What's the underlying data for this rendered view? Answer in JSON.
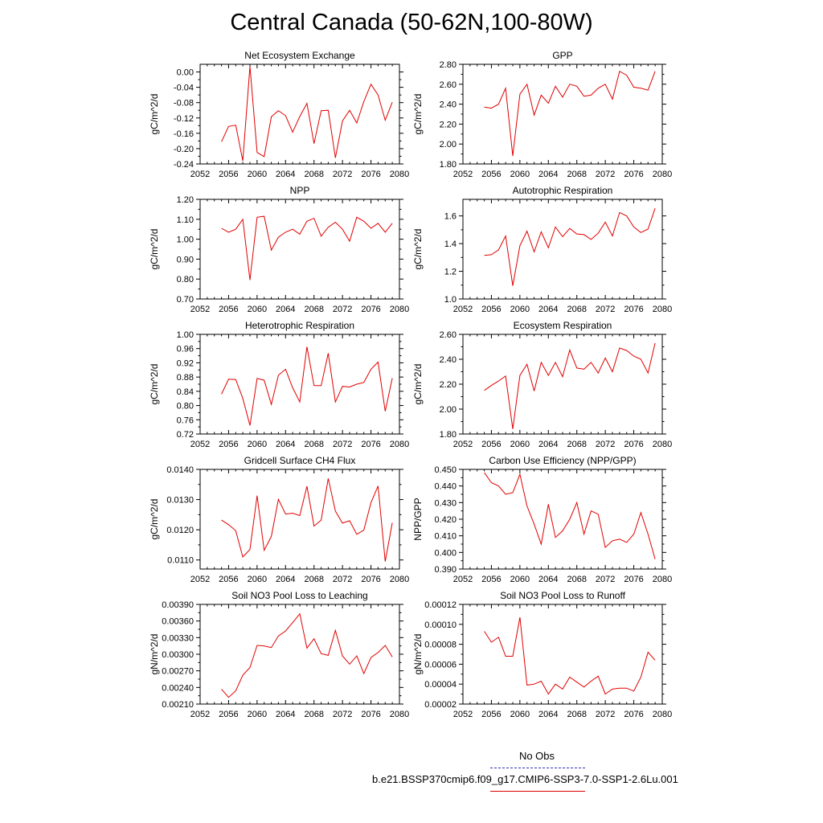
{
  "title": "Central Canada (50-62N,100-80W)",
  "legend": {
    "obs_label": "No Obs",
    "obs_color": "#3030b0",
    "run_label": "b.e21.BSSP370cmip6.f09_g17.CMIP6-SSP3-7.0-SSP1-2.6Lu.001",
    "run_color": "#e00000"
  },
  "chart_data": [
    {
      "type": "line",
      "title": "Net Ecosystem Exchange",
      "ylabel": "gC/m^2/d",
      "xlim": [
        2052,
        2080
      ],
      "ylim": [
        -0.24,
        0.02
      ],
      "xticks": [
        2052,
        2056,
        2060,
        2064,
        2068,
        2072,
        2076,
        2080
      ],
      "xtick_labels": [
        "2052",
        "2056",
        "2060",
        "2064",
        "2068",
        "2072",
        "2076",
        "2080"
      ],
      "yticks": [
        -0.24,
        -0.2,
        -0.16,
        -0.12,
        -0.08,
        -0.04,
        0.0
      ],
      "ytick_labels": [
        "-0.24",
        "-0.20",
        "-0.16",
        "-0.12",
        "-0.08",
        "-0.04",
        "0.00"
      ],
      "x": [
        2055,
        2056,
        2057,
        2058,
        2059,
        2060,
        2061,
        2062,
        2063,
        2064,
        2065,
        2066,
        2067,
        2068,
        2069,
        2070,
        2071,
        2072,
        2073,
        2074,
        2075,
        2076,
        2077,
        2078,
        2079
      ],
      "series": [
        {
          "color": "#e00000",
          "values": [
            -0.182,
            -0.142,
            -0.139,
            -0.232,
            0.015,
            -0.21,
            -0.221,
            -0.117,
            -0.101,
            -0.114,
            -0.157,
            -0.116,
            -0.082,
            -0.187,
            -0.101,
            -0.1,
            -0.224,
            -0.128,
            -0.1,
            -0.133,
            -0.077,
            -0.032,
            -0.06,
            -0.126,
            -0.079
          ]
        }
      ]
    },
    {
      "type": "line",
      "title": "GPP",
      "ylabel": "gC/m^2/d",
      "xlim": [
        2052,
        2080
      ],
      "ylim": [
        1.8,
        2.8
      ],
      "xticks": [
        2052,
        2056,
        2060,
        2064,
        2068,
        2072,
        2076,
        2080
      ],
      "xtick_labels": [
        "2052",
        "2056",
        "2060",
        "2064",
        "2068",
        "2072",
        "2076",
        "2080"
      ],
      "yticks": [
        1.8,
        2.0,
        2.2,
        2.4,
        2.6,
        2.8
      ],
      "ytick_labels": [
        "1.80",
        "2.00",
        "2.20",
        "2.40",
        "2.60",
        "2.80"
      ],
      "x": [
        2055,
        2056,
        2057,
        2058,
        2059,
        2060,
        2061,
        2062,
        2063,
        2064,
        2065,
        2066,
        2067,
        2068,
        2069,
        2070,
        2071,
        2072,
        2073,
        2074,
        2075,
        2076,
        2077,
        2078,
        2079
      ],
      "series": [
        {
          "color": "#e00000",
          "values": [
            2.37,
            2.36,
            2.4,
            2.56,
            1.88,
            2.5,
            2.6,
            2.29,
            2.49,
            2.41,
            2.58,
            2.47,
            2.6,
            2.58,
            2.48,
            2.49,
            2.56,
            2.6,
            2.45,
            2.73,
            2.69,
            2.57,
            2.56,
            2.54,
            2.73
          ]
        }
      ]
    },
    {
      "type": "line",
      "title": "NPP",
      "ylabel": "gC/m^2/d",
      "xlim": [
        2052,
        2080
      ],
      "ylim": [
        0.7,
        1.2
      ],
      "xticks": [
        2052,
        2056,
        2060,
        2064,
        2068,
        2072,
        2076,
        2080
      ],
      "xtick_labels": [
        "2052",
        "2056",
        "2060",
        "2064",
        "2068",
        "2072",
        "2076",
        "2080"
      ],
      "yticks": [
        0.7,
        0.8,
        0.9,
        1.0,
        1.1,
        1.2
      ],
      "ytick_labels": [
        "0.70",
        "0.80",
        "0.90",
        "1.00",
        "1.10",
        "1.20"
      ],
      "x": [
        2055,
        2056,
        2057,
        2058,
        2059,
        2060,
        2061,
        2062,
        2063,
        2064,
        2065,
        2066,
        2067,
        2068,
        2069,
        2070,
        2071,
        2072,
        2073,
        2074,
        2075,
        2076,
        2077,
        2078,
        2079
      ],
      "series": [
        {
          "color": "#e00000",
          "values": [
            1.055,
            1.035,
            1.05,
            1.1,
            0.795,
            1.11,
            1.115,
            0.945,
            1.01,
            1.035,
            1.05,
            1.025,
            1.09,
            1.105,
            1.015,
            1.06,
            1.085,
            1.05,
            0.99,
            1.11,
            1.09,
            1.055,
            1.08,
            1.035,
            1.08
          ]
        }
      ]
    },
    {
      "type": "line",
      "title": "Autotrophic Respiration",
      "ylabel": "gC/m^2/d",
      "xlim": [
        2052,
        2080
      ],
      "ylim": [
        1.0,
        1.72
      ],
      "xticks": [
        2052,
        2056,
        2060,
        2064,
        2068,
        2072,
        2076,
        2080
      ],
      "xtick_labels": [
        "2052",
        "2056",
        "2060",
        "2064",
        "2068",
        "2072",
        "2076",
        "2080"
      ],
      "yticks": [
        1.0,
        1.2,
        1.4,
        1.6
      ],
      "ytick_labels": [
        "1.0",
        "1.2",
        "1.4",
        "1.6"
      ],
      "x": [
        2055,
        2056,
        2057,
        2058,
        2059,
        2060,
        2061,
        2062,
        2063,
        2064,
        2065,
        2066,
        2067,
        2068,
        2069,
        2070,
        2071,
        2072,
        2073,
        2074,
        2075,
        2076,
        2077,
        2078,
        2079
      ],
      "series": [
        {
          "color": "#e00000",
          "values": [
            1.315,
            1.32,
            1.355,
            1.455,
            1.095,
            1.385,
            1.49,
            1.34,
            1.485,
            1.37,
            1.52,
            1.45,
            1.51,
            1.47,
            1.465,
            1.43,
            1.475,
            1.555,
            1.455,
            1.625,
            1.6,
            1.52,
            1.48,
            1.505,
            1.655
          ]
        }
      ]
    },
    {
      "type": "line",
      "title": "Heterotrophic Respiration",
      "ylabel": "gC/m^2/d",
      "xlim": [
        2052,
        2080
      ],
      "ylim": [
        0.72,
        1.0
      ],
      "xticks": [
        2052,
        2056,
        2060,
        2064,
        2068,
        2072,
        2076,
        2080
      ],
      "xtick_labels": [
        "2052",
        "2056",
        "2060",
        "2064",
        "2068",
        "2072",
        "2076",
        "2080"
      ],
      "yticks": [
        0.72,
        0.76,
        0.8,
        0.84,
        0.88,
        0.92,
        0.96,
        1.0
      ],
      "ytick_labels": [
        "0.72",
        "0.76",
        "0.80",
        "0.84",
        "0.88",
        "0.92",
        "0.96",
        "1.00"
      ],
      "x": [
        2055,
        2056,
        2057,
        2058,
        2059,
        2060,
        2061,
        2062,
        2063,
        2064,
        2065,
        2066,
        2067,
        2068,
        2069,
        2070,
        2071,
        2072,
        2073,
        2074,
        2075,
        2076,
        2077,
        2078,
        2079
      ],
      "series": [
        {
          "color": "#e00000",
          "values": [
            0.832,
            0.874,
            0.873,
            0.82,
            0.744,
            0.876,
            0.871,
            0.803,
            0.885,
            0.902,
            0.85,
            0.81,
            0.965,
            0.856,
            0.856,
            0.947,
            0.81,
            0.854,
            0.852,
            0.86,
            0.865,
            0.902,
            0.922,
            0.784,
            0.877
          ]
        }
      ]
    },
    {
      "type": "line",
      "title": "Ecosystem Respiration",
      "ylabel": "gC/m^2/d",
      "xlim": [
        2052,
        2080
      ],
      "ylim": [
        1.8,
        2.6
      ],
      "xticks": [
        2052,
        2056,
        2060,
        2064,
        2068,
        2072,
        2076,
        2080
      ],
      "xtick_labels": [
        "2052",
        "2056",
        "2060",
        "2064",
        "2068",
        "2072",
        "2076",
        "2080"
      ],
      "yticks": [
        1.8,
        2.0,
        2.2,
        2.4,
        2.6
      ],
      "ytick_labels": [
        "1.80",
        "2.00",
        "2.20",
        "2.40",
        "2.60"
      ],
      "x": [
        2055,
        2056,
        2057,
        2058,
        2059,
        2060,
        2061,
        2062,
        2063,
        2064,
        2065,
        2066,
        2067,
        2068,
        2069,
        2070,
        2071,
        2072,
        2073,
        2074,
        2075,
        2076,
        2077,
        2078,
        2079
      ],
      "series": [
        {
          "color": "#e00000",
          "values": [
            2.15,
            2.19,
            2.225,
            2.265,
            1.84,
            2.27,
            2.36,
            2.145,
            2.375,
            2.27,
            2.375,
            2.26,
            2.475,
            2.33,
            2.32,
            2.375,
            2.29,
            2.41,
            2.3,
            2.49,
            2.47,
            2.425,
            2.4,
            2.29,
            2.53
          ]
        }
      ]
    },
    {
      "type": "line",
      "title": "Gridcell Surface CH4 Flux",
      "ylabel": "gC/m^2/d",
      "xlim": [
        2052,
        2080
      ],
      "ylim": [
        0.0107,
        0.014
      ],
      "xticks": [
        2052,
        2056,
        2060,
        2064,
        2068,
        2072,
        2076,
        2080
      ],
      "xtick_labels": [
        "2052",
        "2056",
        "2060",
        "2064",
        "2068",
        "2072",
        "2076",
        "2080"
      ],
      "yticks": [
        0.011,
        0.012,
        0.013,
        0.014
      ],
      "ytick_labels": [
        "0.0110",
        "0.0120",
        "0.0130",
        "0.0140"
      ],
      "x": [
        2055,
        2056,
        2057,
        2058,
        2059,
        2060,
        2061,
        2062,
        2063,
        2064,
        2065,
        2066,
        2067,
        2068,
        2069,
        2070,
        2071,
        2072,
        2073,
        2074,
        2075,
        2076,
        2077,
        2078,
        2079
      ],
      "series": [
        {
          "color": "#e00000",
          "values": [
            0.01232,
            0.01217,
            0.01197,
            0.0111,
            0.01135,
            0.01313,
            0.01132,
            0.01178,
            0.01301,
            0.01252,
            0.01255,
            0.01247,
            0.01344,
            0.01212,
            0.01232,
            0.0137,
            0.01262,
            0.01222,
            0.0123,
            0.01185,
            0.01199,
            0.0129,
            0.01345,
            0.01095,
            0.01223
          ]
        }
      ]
    },
    {
      "type": "line",
      "title": "Carbon Use Efficiency (NPP/GPP)",
      "ylabel": "NPP/GPP",
      "xlim": [
        2052,
        2080
      ],
      "ylim": [
        0.39,
        0.45
      ],
      "xticks": [
        2052,
        2056,
        2060,
        2064,
        2068,
        2072,
        2076,
        2080
      ],
      "xtick_labels": [
        "2052",
        "2056",
        "2060",
        "2064",
        "2068",
        "2072",
        "2076",
        "2080"
      ],
      "yticks": [
        0.39,
        0.4,
        0.41,
        0.42,
        0.43,
        0.44,
        0.45
      ],
      "ytick_labels": [
        "0.390",
        "0.400",
        "0.410",
        "0.420",
        "0.430",
        "0.440",
        "0.450"
      ],
      "x": [
        2055,
        2056,
        2057,
        2058,
        2059,
        2060,
        2061,
        2062,
        2063,
        2064,
        2065,
        2066,
        2067,
        2068,
        2069,
        2070,
        2071,
        2072,
        2073,
        2074,
        2075,
        2076,
        2077,
        2078,
        2079
      ],
      "series": [
        {
          "color": "#e00000",
          "values": [
            0.448,
            0.442,
            0.44,
            0.435,
            0.436,
            0.447,
            0.428,
            0.417,
            0.405,
            0.429,
            0.409,
            0.413,
            0.42,
            0.43,
            0.411,
            0.425,
            0.423,
            0.403,
            0.407,
            0.408,
            0.406,
            0.411,
            0.424,
            0.411,
            0.396
          ]
        }
      ]
    },
    {
      "type": "line",
      "title": "Soil NO3 Pool Loss to Leaching",
      "ylabel": "gN/m^2/d",
      "xlim": [
        2052,
        2080
      ],
      "ylim": [
        0.0021,
        0.0039
      ],
      "xticks": [
        2052,
        2056,
        2060,
        2064,
        2068,
        2072,
        2076,
        2080
      ],
      "xtick_labels": [
        "2052",
        "2056",
        "2060",
        "2064",
        "2068",
        "2072",
        "2076",
        "2080"
      ],
      "yticks": [
        0.0021,
        0.0024,
        0.0027,
        0.003,
        0.0033,
        0.0036,
        0.0039
      ],
      "ytick_labels": [
        "0.00210",
        "0.00240",
        "0.00270",
        "0.00300",
        "0.00330",
        "0.00360",
        "0.00390"
      ],
      "x": [
        2055,
        2056,
        2057,
        2058,
        2059,
        2060,
        2061,
        2062,
        2063,
        2064,
        2065,
        2066,
        2067,
        2068,
        2069,
        2070,
        2071,
        2072,
        2073,
        2074,
        2075,
        2076,
        2077,
        2078,
        2079
      ],
      "series": [
        {
          "color": "#e00000",
          "values": [
            0.00237,
            0.00222,
            0.00234,
            0.00262,
            0.00276,
            0.00316,
            0.00315,
            0.00312,
            0.00333,
            0.00342,
            0.00357,
            0.00373,
            0.00311,
            0.00328,
            0.00301,
            0.00298,
            0.00343,
            0.00297,
            0.00282,
            0.00297,
            0.00265,
            0.00294,
            0.00303,
            0.00316,
            0.00295
          ]
        }
      ]
    },
    {
      "type": "line",
      "title": "Soil NO3 Pool Loss to Runoff",
      "ylabel": "gN/m^2/d",
      "xlim": [
        2052,
        2080
      ],
      "ylim": [
        2e-05,
        0.00012
      ],
      "xticks": [
        2052,
        2056,
        2060,
        2064,
        2068,
        2072,
        2076,
        2080
      ],
      "xtick_labels": [
        "2052",
        "2056",
        "2060",
        "2064",
        "2068",
        "2072",
        "2076",
        "2080"
      ],
      "yticks": [
        2e-05,
        4e-05,
        6e-05,
        8e-05,
        0.0001,
        0.00012
      ],
      "ytick_labels": [
        "0.00002",
        "0.00004",
        "0.00006",
        "0.00008",
        "0.00010",
        "0.00012"
      ],
      "x": [
        2055,
        2056,
        2057,
        2058,
        2059,
        2060,
        2061,
        2062,
        2063,
        2064,
        2065,
        2066,
        2067,
        2068,
        2069,
        2070,
        2071,
        2072,
        2073,
        2074,
        2075,
        2076,
        2077,
        2078,
        2079
      ],
      "series": [
        {
          "color": "#e00000",
          "values": [
            9.3e-05,
            8.2e-05,
            8.7e-05,
            6.8e-05,
            6.8e-05,
            0.000107,
            3.9e-05,
            4e-05,
            4.3e-05,
            3e-05,
            4e-05,
            3.5e-05,
            4.7e-05,
            4.2e-05,
            3.7e-05,
            4.3e-05,
            4.8e-05,
            3e-05,
            3.5e-05,
            3.6e-05,
            3.6e-05,
            3.3e-05,
            4.7e-05,
            7.2e-05,
            6.4e-05
          ]
        }
      ]
    }
  ]
}
